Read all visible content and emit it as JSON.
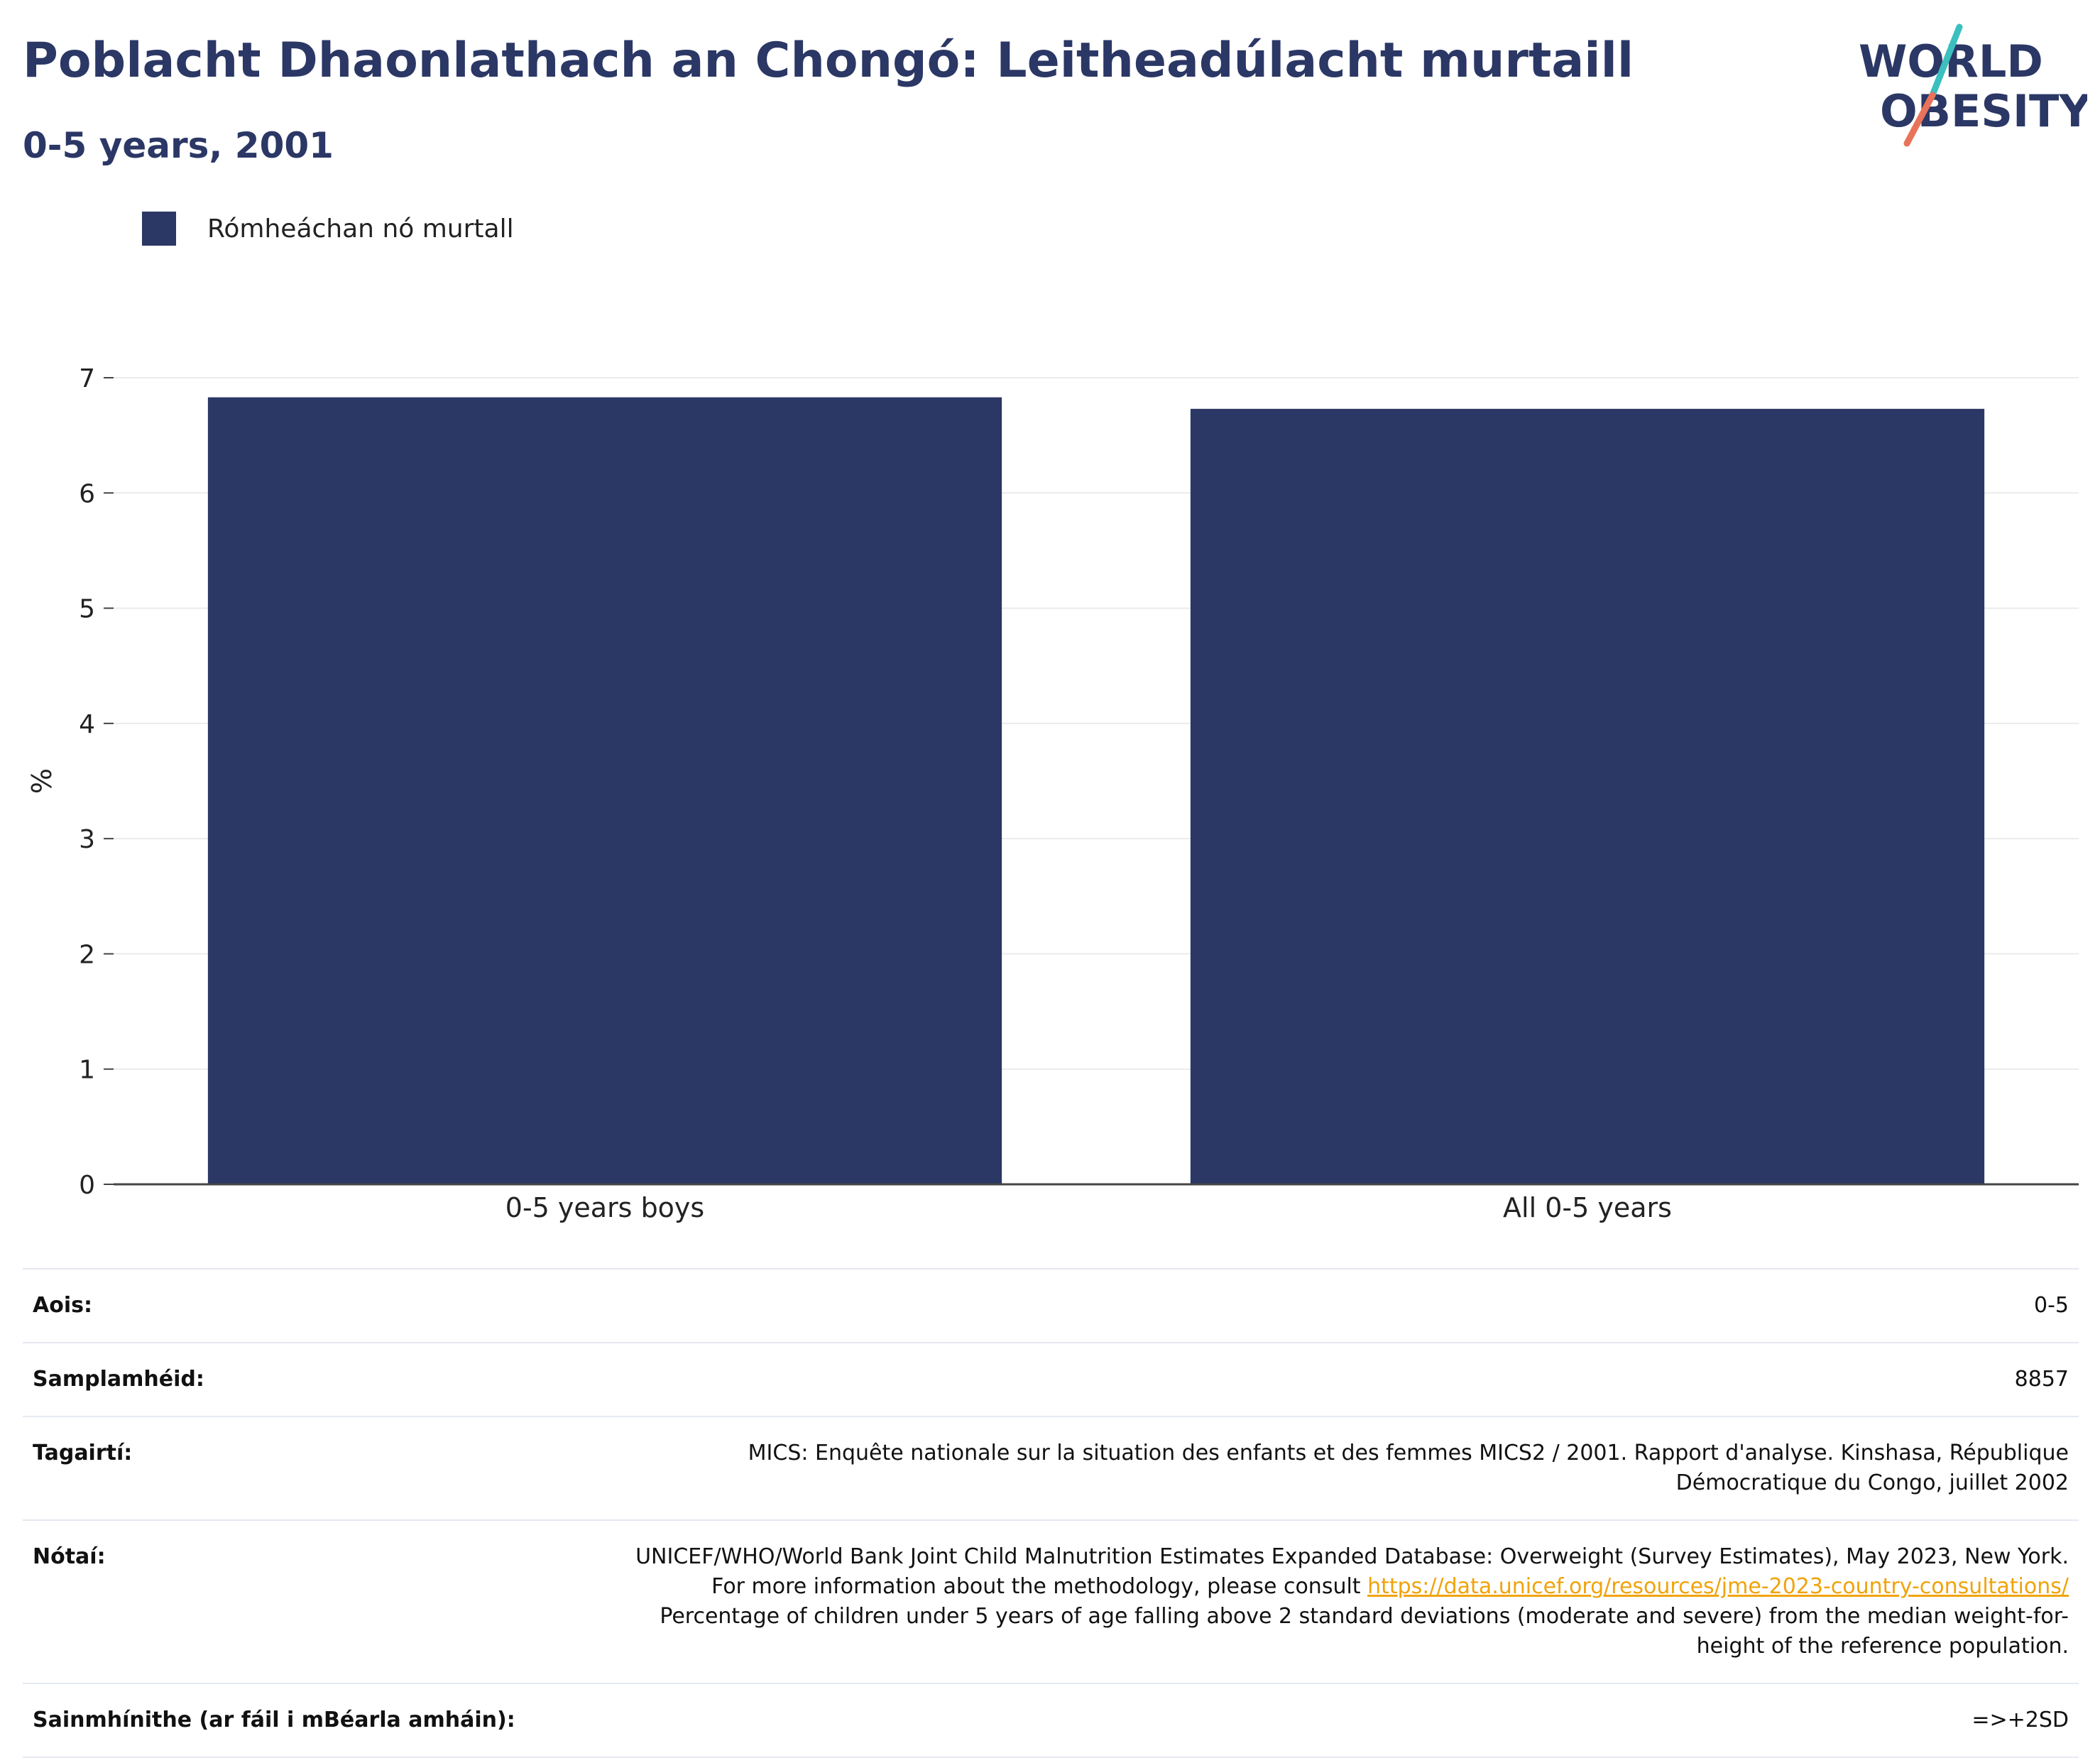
{
  "header": {
    "title": "Poblacht Dhaonlathach an Chongó: Leitheadúlacht murtaill",
    "subtitle": "0-5 years, 2001"
  },
  "logo": {
    "line1": "WORLD",
    "line2": "OBESITY",
    "colors": {
      "text": "#2b3765",
      "slash_teal": "#3bbfbf",
      "slash_coral": "#e8735a"
    }
  },
  "legend": {
    "label": "Rómheáchan nó murtall",
    "color": "#2b3765"
  },
  "chart_data": {
    "type": "bar",
    "categories": [
      "0-5 years boys",
      "All 0-5 years"
    ],
    "series": [
      {
        "name": "Rómheáchan nó murtall",
        "values": [
          6.83,
          6.73
        ],
        "color": "#2b3765"
      }
    ],
    "ylabel": "%",
    "xlabel": "",
    "ylim": [
      0,
      7
    ],
    "yticks": [
      0,
      1,
      2,
      3,
      4,
      5,
      6,
      7
    ],
    "grid": true,
    "legend_position": "top-left"
  },
  "info": {
    "age": {
      "label": "Aois:",
      "value": "0-5"
    },
    "sample": {
      "label": "Samplamhéid:",
      "value": "8857"
    },
    "references": {
      "label": "Tagairtí:",
      "value": "MICS: Enquête nationale sur la situation des enfants et des femmes MICS2 / 2001. Rapport d'analyse. Kinshasa, République Démocratique du Congo, juillet 2002"
    },
    "notes": {
      "label": "Nótaí:",
      "text_before": "UNICEF/WHO/World Bank Joint Child Malnutrition Estimates Expanded Database: Overweight (Survey Estimates), May 2023, New York. For more information about the methodology, please consult ",
      "link": "https://data.unicef.org/resources/jme-2023-country-consultations/",
      "text_after": " Percentage of children under 5 years of age falling above 2 standard deviations (moderate and severe) from the median weight-for-height of the reference population."
    },
    "definitions": {
      "label": "Sainmhínithe (ar fáil i mBéarla amháin):",
      "value": "=>+2SD"
    }
  }
}
